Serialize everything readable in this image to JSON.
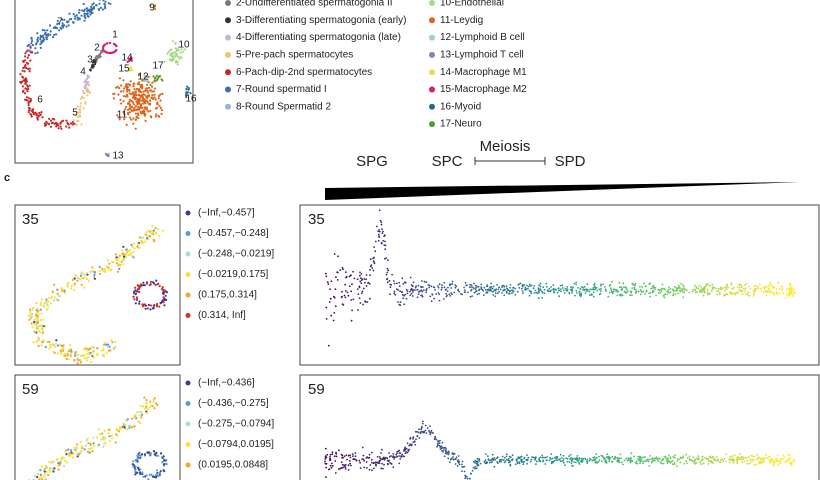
{
  "umap_labels": [
    "1",
    "2",
    "3",
    "4",
    "5",
    "6",
    "7",
    "9",
    "10",
    "11",
    "12",
    "13",
    "14",
    "15",
    "16",
    "17"
  ],
  "legend_left": [
    {
      "label": "2-Undifferentiated spermatogonia II",
      "color": "#7a7a7a"
    },
    {
      "label": "3-Differentiating spermatogonia (early)",
      "color": "#333333"
    },
    {
      "label": "4-Differentiating spermatogonia (late)",
      "color": "#c9b3d9"
    },
    {
      "label": "5-Pre-pach spermatocytes",
      "color": "#f0c27a"
    },
    {
      "label": "6-Pach-dip-2nd spermatocytes",
      "color": "#c62828"
    },
    {
      "label": "7-Round spermatid I",
      "color": "#3a6fb0"
    },
    {
      "label": "8-Round Spermatid 2",
      "color": "#8fb8dc"
    }
  ],
  "legend_right": [
    {
      "label": "10-Endothelial",
      "color": "#a8d98a"
    },
    {
      "label": "11-Leydig",
      "color": "#d9661c"
    },
    {
      "label": "12-Lymphoid B cell",
      "color": "#9fd3c7"
    },
    {
      "label": "13-Lymphoid T cell",
      "color": "#8a7fc0"
    },
    {
      "label": "14-Macrophage M1",
      "color": "#e8e04a"
    },
    {
      "label": "15-Macrophage M2",
      "color": "#e0177a"
    },
    {
      "label": "16-Myoid",
      "color": "#1f6f8b"
    },
    {
      "label": "17-Neuro",
      "color": "#5a9a2a"
    }
  ],
  "stages": {
    "spg": "SPG",
    "spc": "SPC",
    "meiosis": "Meiosis",
    "spd": "SPD"
  },
  "panel_letter": "c",
  "panels": [
    {
      "id": "35",
      "bins": [
        "(−Inf,−0.457]",
        "(−0.457,−0.248]",
        "(−0.248,−0.0219]",
        "(−0.0219,0.175]",
        "(0.175,0.314]",
        "(0.314, Inf]"
      ]
    },
    {
      "id": "59",
      "bins": [
        "(−Inf,−0.436]",
        "(−0.436,−0.275]",
        "(−0.275,−0.0794]",
        "(−0.0794,0.0195]",
        "(0.0195,0.0848]"
      ]
    }
  ],
  "bin_colors": [
    "#3b3b9b",
    "#5a9bd5",
    "#a8dde0",
    "#f0e442",
    "#f5a623",
    "#d7301f"
  ]
}
